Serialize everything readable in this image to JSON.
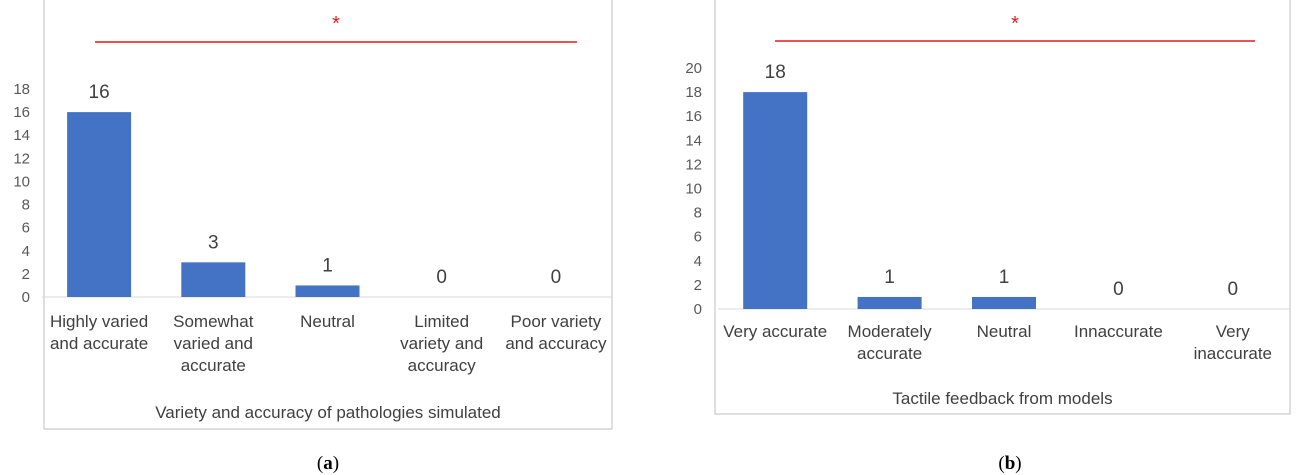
{
  "figure": {
    "captions": [
      "(a)",
      "(b)"
    ],
    "significance_marker": "*",
    "colors": {
      "bar": "#4472C4",
      "significance": "#E31A1C",
      "text": "#404040",
      "tick": "#595959",
      "frame": "#BFBFBF",
      "baseline": "#D9D9D9"
    }
  },
  "chart_data": [
    {
      "type": "bar",
      "title": "",
      "xlabel": "Variety and accuracy of pathologies simulated",
      "ylabel": "",
      "ylim": [
        0,
        18
      ],
      "yticks": [
        0,
        2,
        4,
        6,
        8,
        10,
        12,
        14,
        16,
        18
      ],
      "categories": [
        [
          "Highly varied",
          "and accurate"
        ],
        [
          "Somewhat",
          "varied and",
          "accurate"
        ],
        [
          "Neutral"
        ],
        [
          "Limited",
          "variety and",
          "accuracy"
        ],
        [
          "Poor variety",
          "and accuracy"
        ]
      ],
      "values": [
        16,
        3,
        1,
        0,
        0
      ],
      "data_labels": true,
      "grid": false,
      "legend": "none",
      "significance": "*"
    },
    {
      "type": "bar",
      "title": "",
      "xlabel": "Tactile feedback from models",
      "ylabel": "",
      "ylim": [
        0,
        20
      ],
      "yticks": [
        0,
        2,
        4,
        6,
        8,
        10,
        12,
        14,
        16,
        18,
        20
      ],
      "categories": [
        [
          "Very accurate"
        ],
        [
          "Moderately",
          "accurate"
        ],
        [
          "Neutral"
        ],
        [
          "Innaccurate"
        ],
        [
          "Very",
          "inaccurate"
        ]
      ],
      "values": [
        18,
        1,
        1,
        0,
        0
      ],
      "data_labels": true,
      "grid": false,
      "legend": "none",
      "significance": "*"
    }
  ]
}
